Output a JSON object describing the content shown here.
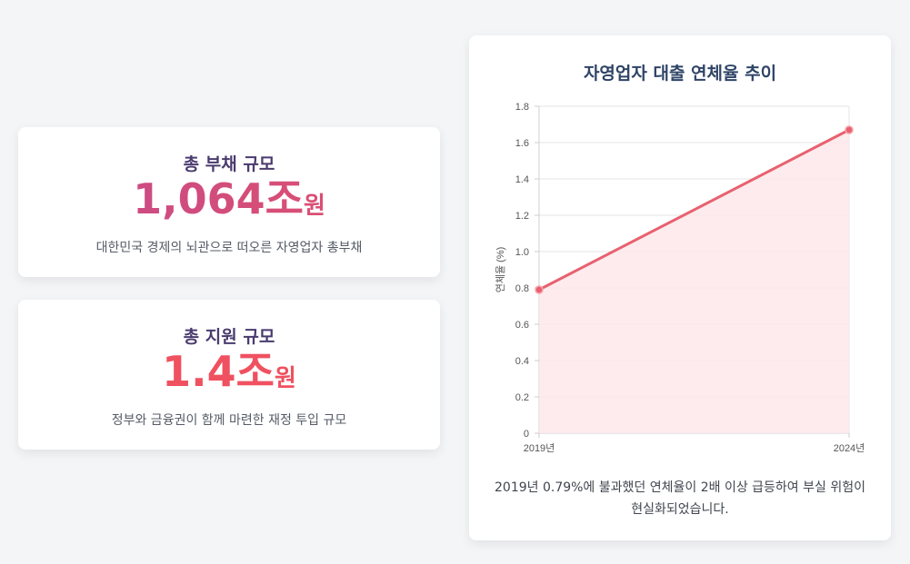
{
  "cards": [
    {
      "title": "총 부채 규모",
      "value": "1,064조",
      "unit": "원",
      "description": "대한민국 경제의 뇌관으로 떠오른 자영업자 총부채"
    },
    {
      "title": "총 지원 규모",
      "value": "1.4조",
      "unit": "원",
      "description": "정부와 금융권이 함께 마련한 재정 투입 규모"
    }
  ],
  "colors": {
    "background": "#f4f5f7",
    "card": "#ffffff",
    "accent_debt_start": "#c44a8c",
    "accent_debt_end": "#e2506a",
    "accent_support": "#ef5160",
    "line": "#e8616f",
    "area_fill": "#fde8ea",
    "title": "#2f4467"
  },
  "chart_data": {
    "type": "line",
    "title": "자영업자 대출 연체율 추이",
    "xlabel": "",
    "ylabel": "연체율 (%)",
    "x": [
      "2019년",
      "2024년"
    ],
    "series": [
      {
        "values": [
          0.79,
          1.67
        ]
      }
    ],
    "ylim": [
      0,
      1.8
    ],
    "yticks": [
      "0",
      "0.2",
      "0.4",
      "0.6",
      "0.8",
      "1.0",
      "1.2",
      "1.4",
      "1.6",
      "1.8"
    ],
    "grid": true,
    "filled_area": true,
    "legend": "none"
  },
  "chart_caption": "2019년 0.79%에 불과했던 연체율이 2배 이상 급등하여 부실 위험이 현실화되었습니다."
}
